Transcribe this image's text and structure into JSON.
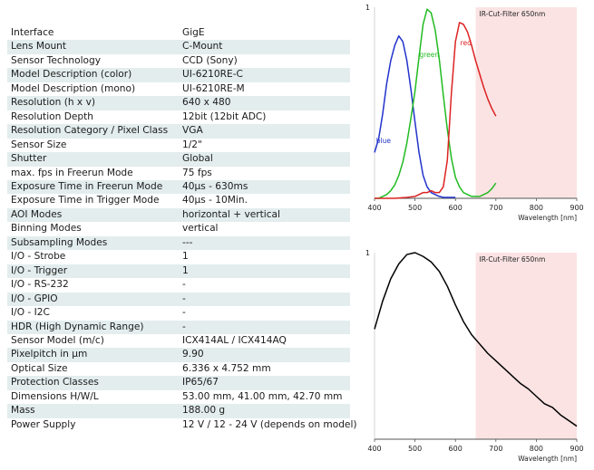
{
  "spec_table": {
    "rows": [
      {
        "label": "Interface",
        "value": "GigE"
      },
      {
        "label": "Lens Mount",
        "value": "C-Mount"
      },
      {
        "label": "Sensor Technology",
        "value": "CCD (Sony)"
      },
      {
        "label": "Model Description (color)",
        "value": "UI-6210RE-C"
      },
      {
        "label": "Model Description (mono)",
        "value": "UI-6210RE-M"
      },
      {
        "label": "Resolution (h x v)",
        "value": "640 x 480"
      },
      {
        "label": "Resolution Depth",
        "value": "12bit (12bit ADC)"
      },
      {
        "label": "Resolution Category / Pixel Class",
        "value": "VGA"
      },
      {
        "label": "Sensor Size",
        "value": "1/2\""
      },
      {
        "label": "Shutter",
        "value": "Global"
      },
      {
        "label": "max. fps in Freerun Mode",
        "value": "75 fps"
      },
      {
        "label": "Exposure Time in Freerun Mode",
        "value": "40µs - 630ms"
      },
      {
        "label": "Exposure Time in Trigger Mode",
        "value": "40µs - 10Min."
      },
      {
        "label": "AOI Modes",
        "value": "horizontal + vertical"
      },
      {
        "label": "Binning Modes",
        "value": "vertical"
      },
      {
        "label": "Subsampling Modes",
        "value": "---"
      },
      {
        "label": "I/O - Strobe",
        "value": "1"
      },
      {
        "label": "I/O - Trigger",
        "value": "1"
      },
      {
        "label": "I/O - RS-232",
        "value": "-"
      },
      {
        "label": "I/O - GPIO",
        "value": "-"
      },
      {
        "label": "I/O - I2C",
        "value": "-"
      },
      {
        "label": "HDR (High Dynamic Range)",
        "value": "-"
      },
      {
        "label": "Sensor Model (m/c)",
        "value": "ICX414AL / ICX414AQ"
      },
      {
        "label": "Pixelpitch in µm",
        "value": "9.90"
      },
      {
        "label": "Optical Size",
        "value": "6.336 x 4.752 mm"
      },
      {
        "label": "Protection Classes",
        "value": "IP65/67"
      },
      {
        "label": "Dimensions H/W/L",
        "value": "53.00 mm, 41.00 mm, 42.70 mm"
      },
      {
        "label": "Mass",
        "value": "188.00 g"
      },
      {
        "label": "Power Supply",
        "value": "12 V / 12 - 24 V (depends on model)"
      }
    ]
  },
  "colors": {
    "row_alt": "#e3eded",
    "ir_band": "#fbe3e3",
    "blue": "#2233cc",
    "green": "#22bb22",
    "red": "#dd2222",
    "mono": "#000000"
  },
  "chart_data": [
    {
      "type": "line",
      "annotation": "IR-Cut-Filter 650nm",
      "shaded_range": [
        650,
        900
      ],
      "xlabel": "Wavelength [nm]",
      "ylabel": "",
      "xlim": [
        400,
        900
      ],
      "ylim": [
        0,
        1
      ],
      "x_ticks": [
        400,
        500,
        600,
        700,
        800,
        900
      ],
      "y_tick_labels": [
        "1"
      ],
      "grid": false,
      "series": [
        {
          "name": "blue",
          "color": "#2233cc",
          "label_at": [
            404,
            0.29
          ],
          "x": [
            400,
            410,
            420,
            430,
            440,
            450,
            460,
            470,
            480,
            490,
            500,
            510,
            520,
            530,
            540,
            550,
            560,
            570,
            580,
            590,
            600
          ],
          "y": [
            0.24,
            0.31,
            0.44,
            0.6,
            0.72,
            0.8,
            0.85,
            0.82,
            0.72,
            0.57,
            0.4,
            0.24,
            0.12,
            0.06,
            0.03,
            0.02,
            0.01,
            0.005,
            0.005,
            0.005,
            0.005
          ]
        },
        {
          "name": "green",
          "color": "#22bb22",
          "label_at": [
            511,
            0.74
          ],
          "x": [
            400,
            410,
            420,
            430,
            440,
            450,
            460,
            470,
            480,
            490,
            500,
            510,
            520,
            530,
            540,
            550,
            560,
            570,
            580,
            590,
            600,
            610,
            620,
            630,
            640,
            650,
            660,
            670,
            680,
            690,
            700
          ],
          "y": [
            0.0,
            0.0,
            0.01,
            0.02,
            0.04,
            0.07,
            0.12,
            0.19,
            0.29,
            0.42,
            0.56,
            0.74,
            0.91,
            0.99,
            0.97,
            0.88,
            0.73,
            0.54,
            0.36,
            0.21,
            0.11,
            0.06,
            0.03,
            0.02,
            0.01,
            0.01,
            0.01,
            0.02,
            0.03,
            0.05,
            0.08
          ]
        },
        {
          "name": "red",
          "color": "#dd2222",
          "label_at": [
            612,
            0.8
          ],
          "x": [
            400,
            450,
            480,
            500,
            510,
            520,
            530,
            540,
            550,
            560,
            570,
            580,
            590,
            600,
            610,
            620,
            630,
            640,
            650,
            660,
            670,
            680,
            690,
            700
          ],
          "y": [
            0.0,
            0.0,
            0.005,
            0.01,
            0.02,
            0.03,
            0.03,
            0.04,
            0.03,
            0.03,
            0.06,
            0.2,
            0.55,
            0.82,
            0.92,
            0.91,
            0.87,
            0.8,
            0.72,
            0.65,
            0.58,
            0.52,
            0.47,
            0.43
          ]
        }
      ]
    },
    {
      "type": "line",
      "annotation": "IR-Cut-Filter 650nm",
      "shaded_range": [
        650,
        900
      ],
      "xlabel": "Wavelength [nm]",
      "ylabel": "",
      "xlim": [
        400,
        900
      ],
      "ylim": [
        0,
        1
      ],
      "x_ticks": [
        400,
        500,
        600,
        700,
        800,
        900
      ],
      "y_tick_labels": [
        "1"
      ],
      "grid": false,
      "series": [
        {
          "name": "",
          "color": "#000000",
          "x": [
            400,
            420,
            440,
            460,
            480,
            500,
            520,
            540,
            560,
            580,
            600,
            620,
            640,
            660,
            680,
            700,
            720,
            740,
            760,
            780,
            800,
            820,
            840,
            860,
            880,
            900
          ],
          "y": [
            0.59,
            0.74,
            0.86,
            0.94,
            0.99,
            1.0,
            0.98,
            0.95,
            0.9,
            0.82,
            0.72,
            0.63,
            0.56,
            0.51,
            0.46,
            0.42,
            0.38,
            0.34,
            0.3,
            0.27,
            0.23,
            0.19,
            0.17,
            0.13,
            0.1,
            0.07
          ]
        }
      ]
    }
  ]
}
